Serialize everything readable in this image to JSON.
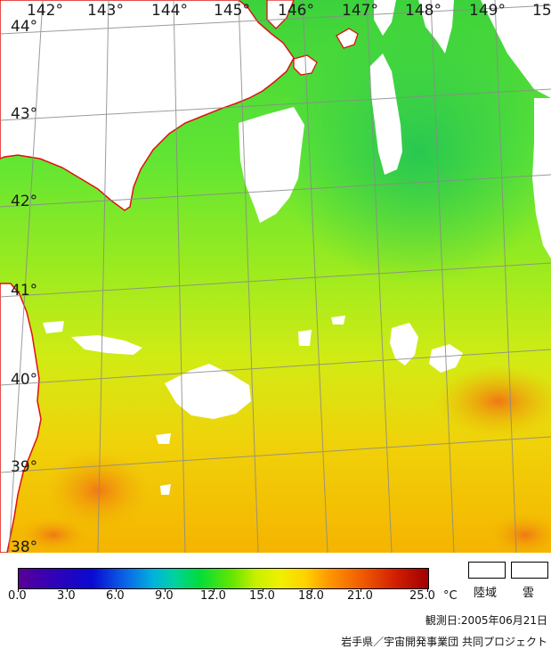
{
  "map": {
    "longitude_labels": [
      "142°",
      "143°",
      "144°",
      "145°",
      "146°",
      "147°",
      "148°",
      "149°",
      "15"
    ],
    "latitude_labels": [
      "44°",
      "43°",
      "42°",
      "41°",
      "40°",
      "39°",
      "38°"
    ]
  },
  "legend": {
    "ticks": [
      "0.0",
      "3.0",
      "6.0",
      "9.0",
      "12.0",
      "15.0",
      "18.0",
      "21.0",
      "25.0"
    ],
    "unit": "°C",
    "land_label": "陸域",
    "cloud_label": "雲"
  },
  "observation_date": "観測日:2005年06月21日",
  "credit": "岩手県／宇宙開発事業団 共同プロジェクト",
  "colors": {
    "coastline": "#e01010",
    "grid": "#8a8a8a",
    "land": "#ffffff",
    "cloud": "#ffffff",
    "cool_sea": "#6ee61e",
    "warm_sea": "#f0c800"
  }
}
